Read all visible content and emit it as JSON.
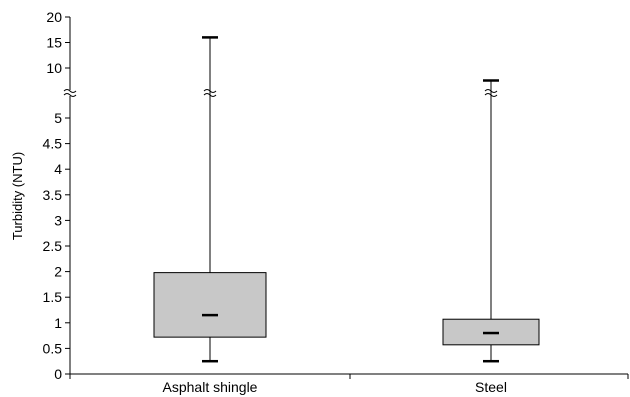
{
  "chart_data": {
    "type": "box",
    "title": "",
    "xlabel": "",
    "ylabel": "Turbidity (NTU)",
    "categories": [
      "Asphalt shingle",
      "Steel"
    ],
    "series": [
      {
        "category": "Asphalt shingle",
        "min": 0.25,
        "q1": 0.72,
        "median": 1.15,
        "q3": 1.98,
        "max": 16
      },
      {
        "category": "Steel",
        "min": 0.25,
        "q1": 0.57,
        "median": 0.8,
        "q3": 1.07,
        "max": 7.5
      }
    ],
    "y_axis": {
      "broken": true,
      "lower_segment": {
        "range": [
          0,
          5.5
        ],
        "ticks": [
          0,
          0.5,
          1,
          1.5,
          2,
          2.5,
          3,
          3.5,
          4,
          4.5,
          5
        ]
      },
      "upper_segment": {
        "range": [
          5.5,
          20
        ],
        "ticks": [
          10,
          15,
          20
        ]
      },
      "tick_labels": [
        "0",
        "0.5",
        "1",
        "1.5",
        "2",
        "2.5",
        "3",
        "3.5",
        "4",
        "4.5",
        "5",
        "10",
        "15",
        "20"
      ]
    },
    "box_fill": "#c8c8c8",
    "grid": false,
    "legend": "none"
  }
}
